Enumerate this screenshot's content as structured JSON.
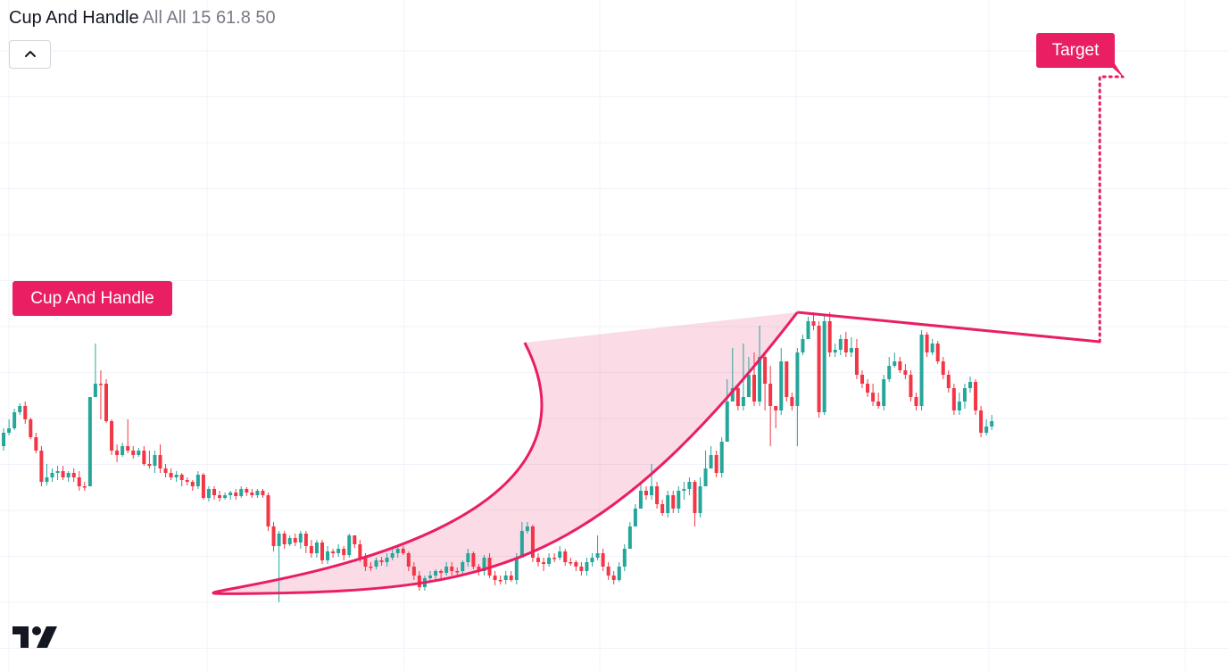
{
  "indicator": {
    "name": "Cup And Handle",
    "params": "All All 15 61.8 50"
  },
  "labels": {
    "pattern": "Cup And Handle",
    "target": "Target"
  },
  "icons": {
    "collapse": "chevron-up-icon",
    "logo": "tradingview-logo"
  },
  "colors": {
    "up": "#26a69a",
    "down": "#f23645",
    "pattern": "#e91e63",
    "pattern_fill": "rgba(233,30,99,0.16)",
    "grid": "#f0f3fa"
  },
  "chart_data": {
    "type": "candlestick",
    "title": "Cup And Handle",
    "grid": true,
    "y_axis": "hidden",
    "x_axis": "hidden",
    "candles": [
      [
        510,
        500,
        520,
        490
      ],
      [
        500,
        485,
        505,
        480
      ],
      [
        485,
        480,
        488,
        470
      ],
      [
        480,
        462,
        482,
        458
      ],
      [
        462,
        455,
        465,
        452
      ],
      [
        455,
        470,
        475,
        450
      ],
      [
        470,
        490,
        492,
        468
      ],
      [
        490,
        505,
        508,
        485
      ],
      [
        505,
        540,
        545,
        500
      ],
      [
        540,
        535,
        544,
        520
      ],
      [
        535,
        530,
        540,
        525
      ],
      [
        530,
        528,
        538,
        522
      ],
      [
        528,
        535,
        538,
        522
      ],
      [
        535,
        530,
        540,
        528
      ],
      [
        530,
        535,
        540,
        525
      ],
      [
        535,
        545,
        550,
        528
      ],
      [
        545,
        545,
        550,
        540
      ],
      [
        545,
        445,
        448,
        540
      ],
      [
        445,
        430,
        435,
        385
      ],
      [
        430,
        430,
        470,
        415
      ],
      [
        430,
        472,
        474,
        425
      ],
      [
        472,
        505,
        510,
        470
      ],
      [
        505,
        510,
        518,
        498
      ],
      [
        510,
        500,
        512,
        496
      ],
      [
        500,
        505,
        508,
        470
      ],
      [
        505,
        510,
        514,
        500
      ],
      [
        510,
        505,
        512,
        502
      ],
      [
        505,
        520,
        522,
        500
      ],
      [
        520,
        522,
        525,
        505
      ],
      [
        522,
        510,
        530,
        505
      ],
      [
        510,
        525,
        530,
        498
      ],
      [
        525,
        530,
        535,
        520
      ],
      [
        530,
        535,
        538,
        525
      ],
      [
        535,
        532,
        540,
        528
      ],
      [
        532,
        538,
        545,
        530
      ],
      [
        538,
        540,
        544,
        535
      ],
      [
        540,
        545,
        550,
        538
      ],
      [
        545,
        532,
        548,
        528
      ],
      [
        532,
        558,
        560,
        530
      ],
      [
        558,
        548,
        562,
        545
      ],
      [
        548,
        555,
        560,
        545
      ],
      [
        555,
        558,
        562,
        550
      ],
      [
        558,
        555,
        560,
        552
      ],
      [
        555,
        552,
        560,
        550
      ],
      [
        552,
        556,
        560,
        548
      ],
      [
        556,
        548,
        558,
        545
      ],
      [
        548,
        552,
        556,
        546
      ],
      [
        552,
        555,
        558,
        548
      ],
      [
        555,
        550,
        558,
        548
      ],
      [
        550,
        555,
        558,
        548
      ],
      [
        555,
        590,
        595,
        552
      ],
      [
        590,
        612,
        618,
        585
      ],
      [
        612,
        598,
        675,
        595
      ],
      [
        598,
        610,
        615,
        595
      ],
      [
        610,
        603,
        612,
        600
      ],
      [
        603,
        608,
        612,
        598
      ],
      [
        608,
        598,
        615,
        595
      ],
      [
        598,
        612,
        620,
        595
      ],
      [
        612,
        620,
        625,
        605
      ],
      [
        620,
        608,
        625,
        605
      ],
      [
        608,
        628,
        632,
        605
      ],
      [
        628,
        618,
        632,
        612
      ],
      [
        618,
        620,
        625,
        615
      ],
      [
        620,
        615,
        624,
        610
      ],
      [
        615,
        622,
        628,
        612
      ],
      [
        622,
        600,
        625,
        598
      ],
      [
        600,
        610,
        614,
        600
      ],
      [
        610,
        625,
        630,
        605
      ],
      [
        625,
        635,
        640,
        620
      ],
      [
        635,
        635,
        640,
        630
      ],
      [
        635,
        628,
        638,
        625
      ],
      [
        628,
        630,
        634,
        624
      ],
      [
        630,
        625,
        635,
        620
      ],
      [
        625,
        620,
        628,
        615
      ],
      [
        620,
        615,
        625,
        612
      ],
      [
        615,
        620,
        622,
        612
      ],
      [
        620,
        635,
        640,
        618
      ],
      [
        635,
        645,
        650,
        630
      ],
      [
        645,
        658,
        662,
        640
      ],
      [
        658,
        648,
        662,
        645
      ],
      [
        648,
        645,
        652,
        640
      ],
      [
        645,
        640,
        650,
        638
      ],
      [
        640,
        642,
        648,
        638
      ],
      [
        642,
        635,
        645,
        630
      ],
      [
        635,
        640,
        645,
        630
      ],
      [
        640,
        640,
        644,
        636
      ],
      [
        640,
        630,
        645,
        628
      ],
      [
        630,
        620,
        635,
        615
      ],
      [
        620,
        635,
        638,
        618
      ],
      [
        635,
        640,
        645,
        632
      ],
      [
        640,
        625,
        645,
        622
      ],
      [
        625,
        645,
        648,
        620
      ],
      [
        645,
        650,
        656,
        640
      ],
      [
        650,
        650,
        655,
        645
      ],
      [
        650,
        645,
        655,
        640
      ],
      [
        645,
        650,
        652,
        640
      ],
      [
        650,
        625,
        655,
        620
      ],
      [
        625,
        595,
        600,
        585
      ],
      [
        595,
        590,
        598,
        585
      ],
      [
        590,
        625,
        630,
        588
      ],
      [
        625,
        630,
        635,
        620
      ],
      [
        630,
        632,
        640,
        625
      ],
      [
        632,
        625,
        635,
        620
      ],
      [
        625,
        625,
        630,
        620
      ],
      [
        625,
        618,
        628,
        612
      ],
      [
        618,
        630,
        634,
        615
      ],
      [
        630,
        630,
        634,
        625
      ],
      [
        630,
        635,
        640,
        628
      ],
      [
        635,
        640,
        645,
        630
      ],
      [
        640,
        630,
        645,
        625
      ],
      [
        630,
        625,
        635,
        620
      ],
      [
        625,
        620,
        628,
        600
      ],
      [
        620,
        635,
        640,
        615
      ],
      [
        635,
        645,
        650,
        630
      ],
      [
        645,
        650,
        655,
        640
      ],
      [
        650,
        635,
        652,
        630
      ],
      [
        635,
        615,
        640,
        610
      ],
      [
        615,
        590,
        595,
        585
      ],
      [
        590,
        570,
        575,
        565
      ],
      [
        570,
        550,
        560,
        540
      ],
      [
        550,
        555,
        560,
        545
      ],
      [
        555,
        545,
        560,
        520
      ],
      [
        545,
        565,
        570,
        540
      ],
      [
        565,
        575,
        578,
        560
      ],
      [
        575,
        555,
        580,
        550
      ],
      [
        555,
        570,
        575,
        550
      ],
      [
        570,
        550,
        575,
        545
      ],
      [
        550,
        548,
        560,
        540
      ],
      [
        548,
        540,
        555,
        535
      ],
      [
        540,
        575,
        590,
        538
      ],
      [
        575,
        545,
        580,
        535
      ],
      [
        545,
        525,
        530,
        505
      ],
      [
        525,
        510,
        515,
        500
      ],
      [
        510,
        530,
        535,
        505
      ],
      [
        530,
        495,
        535,
        490
      ],
      [
        495,
        450,
        455,
        425
      ],
      [
        450,
        435,
        440,
        390
      ],
      [
        435,
        455,
        460,
        430
      ],
      [
        455,
        445,
        460,
        385
      ],
      [
        445,
        420,
        425,
        400
      ],
      [
        420,
        450,
        455,
        395
      ],
      [
        450,
        400,
        455,
        365
      ],
      [
        400,
        430,
        460,
        395
      ],
      [
        430,
        455,
        500,
        410
      ],
      [
        455,
        460,
        480,
        455
      ],
      [
        460,
        405,
        465,
        390
      ],
      [
        405,
        445,
        450,
        430
      ],
      [
        445,
        455,
        460,
        440
      ],
      [
        455,
        395,
        500,
        390
      ],
      [
        395,
        380,
        398,
        375
      ],
      [
        380,
        360,
        365,
        355
      ],
      [
        360,
        365,
        370,
        350
      ],
      [
        365,
        462,
        468,
        360
      ],
      [
        462,
        360,
        465,
        352
      ],
      [
        360,
        395,
        400,
        350
      ],
      [
        395,
        392,
        400,
        385
      ],
      [
        392,
        380,
        398,
        375
      ],
      [
        380,
        395,
        400,
        372
      ],
      [
        395,
        390,
        400,
        378
      ],
      [
        390,
        420,
        425,
        380
      ],
      [
        420,
        430,
        435,
        415
      ],
      [
        430,
        440,
        445,
        425
      ],
      [
        440,
        450,
        455,
        430
      ],
      [
        450,
        455,
        458,
        440
      ],
      [
        455,
        425,
        460,
        420
      ],
      [
        425,
        410,
        428,
        400
      ],
      [
        410,
        405,
        412,
        395
      ],
      [
        405,
        415,
        418,
        400
      ],
      [
        415,
        420,
        425,
        408
      ],
      [
        420,
        445,
        450,
        415
      ],
      [
        445,
        455,
        460,
        440
      ],
      [
        455,
        375,
        460,
        370
      ],
      [
        375,
        395,
        400,
        372
      ],
      [
        395,
        385,
        398,
        380
      ],
      [
        385,
        405,
        408,
        382
      ],
      [
        405,
        420,
        425,
        400
      ],
      [
        420,
        435,
        440,
        415
      ],
      [
        435,
        460,
        465,
        430
      ],
      [
        460,
        450,
        465,
        440
      ],
      [
        450,
        435,
        458,
        430
      ],
      [
        435,
        428,
        440,
        422
      ],
      [
        428,
        460,
        465,
        425
      ],
      [
        460,
        485,
        490,
        455
      ],
      [
        485,
        478,
        488,
        470
      ],
      [
        478,
        472,
        482,
        465
      ]
    ],
    "pattern": {
      "left_rim": 97.5,
      "cup_bottom": 49,
      "right_rim": 148,
      "handle_end": 204,
      "target_label": "Target"
    }
  }
}
